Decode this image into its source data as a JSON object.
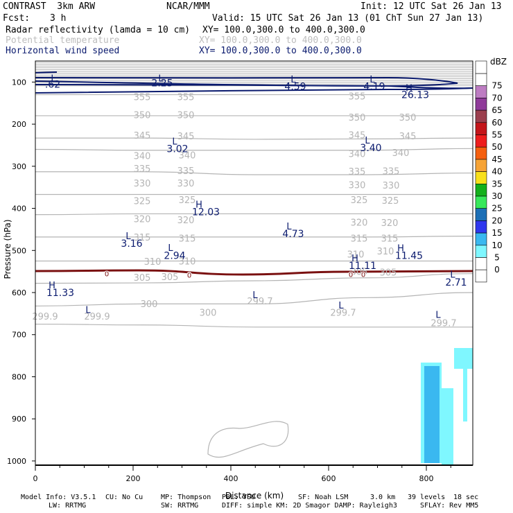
{
  "header": {
    "model": "CONTRAST  3km ARW",
    "center": "NCAR/MMM",
    "init": "Init: 12 UTC Sat 26 Jan 13",
    "fcst_label": "Fcst:",
    "fcst_value": "3 h",
    "valid": "Valid: 15 UTC Sat 26 Jan 13 (01 ChT Sun 27 Jan 13)",
    "field1": "Radar reflectivity (lamda = 10 cm)",
    "field1_xy": "XY= 100.0,300.0 to 400.0,300.0",
    "field2": "Potential temperature",
    "field2_xy": "XY= 100.0,300.0 to 400.0,300.0",
    "field3": "Horizontal wind speed",
    "field3_xy": "XY= 100.0,300.0 to 400.0,300.0"
  },
  "footer": {
    "line1_a": "Model Info: V3.5.1",
    "line1_b": "CU: No Cu",
    "line1_c": "MP: Thompson",
    "line1_d": "PBL: YSU",
    "line1_e": "SF: Noah LSM",
    "line1_f": "3.0 km",
    "line1_g": "39 levels",
    "line1_h": "18 sec",
    "line2_a": "LW: RRTMG",
    "line2_b": "SW: RRTMG",
    "line2_c": "DIFF: simple KM: 2D Smagor DAMP: Rayleigh3",
    "line2_d": "SFLAY: Rev MM5"
  },
  "colors": {
    "theta": "#b4b4b4",
    "wind": "#0a1a6e",
    "zero_line": "#7a1010",
    "axis": "#000000"
  },
  "chart_data": {
    "type": "heatmap",
    "title": "Radar reflectivity / Potential temperature / Horizontal wind speed cross-section",
    "xlabel": "Distance (km)",
    "ylabel": "Pressure (hPa)",
    "xlim": [
      0,
      895
    ],
    "ylim": [
      1010,
      50
    ],
    "x_ticks": [
      0,
      200,
      400,
      600,
      800
    ],
    "y_ticks": [
      100,
      200,
      300,
      400,
      500,
      600,
      700,
      800,
      900,
      1000
    ],
    "colorbar": {
      "unit": "dBZ",
      "levels": [
        0,
        5,
        10,
        15,
        20,
        25,
        30,
        35,
        40,
        45,
        50,
        55,
        60,
        65,
        70,
        75
      ],
      "colors": [
        "#ffffff",
        "#ffffff",
        "#7ff7ff",
        "#3ab8f0",
        "#2f37ee",
        "#1c6fb6",
        "#37e85a",
        "#13b01b",
        "#f9e01a",
        "#f6a335",
        "#f55f0e",
        "#ee1d1d",
        "#c4151a",
        "#9b3f4e",
        "#8f3a99",
        "#bd7cc2",
        "#ffffff"
      ]
    },
    "theta_contours": [
      {
        "value": "355",
        "p": [
          130,
          130,
          130,
          130,
          130
        ]
      },
      {
        "value": "350",
        "p": [
          180,
          180,
          180,
          180,
          180
        ]
      },
      {
        "value": "345",
        "p": [
          233,
          233,
          236,
          235,
          233
        ]
      },
      {
        "value": "340",
        "p": [
          260,
          262,
          262,
          262,
          258
        ]
      },
      {
        "value": "335",
        "p": [
          313,
          313,
          320,
          320,
          316
        ]
      },
      {
        "value": "330",
        "p": [
          367,
          367,
          367,
          367,
          367
        ]
      },
      {
        "value": "325",
        "p": [
          415,
          413,
          413,
          413,
          413
        ]
      },
      {
        "value": "320",
        "p": [
          468,
          468,
          468,
          468,
          466
        ]
      },
      {
        "value": "315",
        "p": [
          525,
          525,
          525,
          525,
          525
        ]
      },
      {
        "value": "310",
        "p": [
          578,
          577,
          572,
          565,
          555
        ]
      },
      {
        "value": "305",
        "p": [
          632,
          627,
          627,
          612,
          600
        ]
      },
      {
        "value": "300",
        "p": [
          675,
          677,
          682,
          682,
          682
        ]
      }
    ],
    "theta_labels": [
      {
        "text": "355",
        "x": 205,
        "p": 135
      },
      {
        "text": "355",
        "x": 268,
        "p": 135
      },
      {
        "text": "355",
        "x": 515,
        "p": 133
      },
      {
        "text": "350",
        "x": 205,
        "p": 178
      },
      {
        "text": "350",
        "x": 268,
        "p": 178
      },
      {
        "text": "350",
        "x": 515,
        "p": 183
      },
      {
        "text": "350",
        "x": 588,
        "p": 183
      },
      {
        "text": "345",
        "x": 205,
        "p": 226
      },
      {
        "text": "345",
        "x": 268,
        "p": 228
      },
      {
        "text": "345",
        "x": 515,
        "p": 225
      },
      {
        "text": "345",
        "x": 588,
        "p": 228
      },
      {
        "text": "340",
        "x": 205,
        "p": 275
      },
      {
        "text": "340",
        "x": 270,
        "p": 273
      },
      {
        "text": "340",
        "x": 515,
        "p": 270
      },
      {
        "text": "340",
        "x": 578,
        "p": 267
      },
      {
        "text": "335",
        "x": 205,
        "p": 305
      },
      {
        "text": "335",
        "x": 268,
        "p": 310
      },
      {
        "text": "335",
        "x": 515,
        "p": 312
      },
      {
        "text": "335",
        "x": 564,
        "p": 311
      },
      {
        "text": "330",
        "x": 205,
        "p": 340
      },
      {
        "text": "330",
        "x": 268,
        "p": 340
      },
      {
        "text": "330",
        "x": 515,
        "p": 344
      },
      {
        "text": "330",
        "x": 564,
        "p": 345
      },
      {
        "text": "325",
        "x": 205,
        "p": 382
      },
      {
        "text": "325",
        "x": 270,
        "p": 379
      },
      {
        "text": "325",
        "x": 518,
        "p": 379
      },
      {
        "text": "325",
        "x": 563,
        "p": 381
      },
      {
        "text": "320",
        "x": 205,
        "p": 425
      },
      {
        "text": "320",
        "x": 268,
        "p": 427
      },
      {
        "text": "320",
        "x": 518,
        "p": 433
      },
      {
        "text": "320",
        "x": 562,
        "p": 434
      },
      {
        "text": "315",
        "x": 205,
        "p": 468
      },
      {
        "text": "315",
        "x": 270,
        "p": 471
      },
      {
        "text": "315",
        "x": 518,
        "p": 471
      },
      {
        "text": "315",
        "x": 562,
        "p": 471
      },
      {
        "text": "310",
        "x": 220,
        "p": 526
      },
      {
        "text": "310",
        "x": 270,
        "p": 525
      },
      {
        "text": "310",
        "x": 513,
        "p": 509
      },
      {
        "text": "310",
        "x": 556,
        "p": 501
      },
      {
        "text": "305",
        "x": 205,
        "p": 564
      },
      {
        "text": "305",
        "x": 245,
        "p": 562
      },
      {
        "text": "305",
        "x": 518,
        "p": 550
      },
      {
        "text": "305",
        "x": 560,
        "p": 551
      },
      {
        "text": "300",
        "x": 215,
        "p": 626
      },
      {
        "text": "300",
        "x": 300,
        "p": 647
      },
      {
        "text": "299.7",
        "x": 375,
        "p": 620
      },
      {
        "text": "299.9",
        "x": 65,
        "p": 656
      },
      {
        "text": "299.9",
        "x": 140,
        "p": 656
      },
      {
        "text": "299.7",
        "x": 495,
        "p": 647
      },
      {
        "text": "299.7",
        "x": 640,
        "p": 672
      }
    ],
    "low_pressure_labels": [
      {
        "text": "L",
        "x": 77,
        "p": 90
      },
      {
        "text": "L",
        "x": 232,
        "p": 90
      },
      {
        "text": "L",
        "x": 423,
        "p": 93
      },
      {
        "text": "L",
        "x": 537,
        "p": 93
      },
      {
        "text": "L",
        "x": 252,
        "p": 240
      },
      {
        "text": "L",
        "x": 530,
        "p": 238
      },
      {
        "text": "L",
        "x": 653,
        "p": 556
      },
      {
        "text": "L",
        "x": 417,
        "p": 442
      },
      {
        "text": "L",
        "x": 185,
        "p": 465
      },
      {
        "text": "L",
        "x": 246,
        "p": 493
      },
      {
        "text": "L",
        "x": 368,
        "p": 605
      },
      {
        "text": "L",
        "x": 127,
        "p": 640
      },
      {
        "text": "L",
        "x": 492,
        "p": 630
      },
      {
        "text": "L",
        "x": 632,
        "p": 652
      }
    ],
    "high_pressure_labels": [
      {
        "text": "H",
        "x": 590,
        "p": 113
      },
      {
        "text": "H",
        "x": 287,
        "p": 390
      },
      {
        "text": "H",
        "x": 578,
        "p": 494
      },
      {
        "text": "H",
        "x": 512,
        "p": 518
      },
      {
        "text": "H",
        "x": 75,
        "p": 582
      }
    ],
    "wind_speed_labels": [
      {
        "text": ".62",
        "x": 76,
        "p": 105
      },
      {
        "text": "2.25",
        "x": 234,
        "p": 102
      },
      {
        "text": "4.59",
        "x": 426,
        "p": 110
      },
      {
        "text": "4.19",
        "x": 540,
        "p": 110
      },
      {
        "text": "26.13",
        "x": 599,
        "p": 130
      },
      {
        "text": "3.02",
        "x": 256,
        "p": 258
      },
      {
        "text": "3.40",
        "x": 535,
        "p": 256
      },
      {
        "text": "12.03",
        "x": 297,
        "p": 408
      },
      {
        "text": "2.71",
        "x": 658,
        "p": 575
      },
      {
        "text": "4.73",
        "x": 423,
        "p": 460
      },
      {
        "text": "3.16",
        "x": 190,
        "p": 483
      },
      {
        "text": "2.94",
        "x": 252,
        "p": 512
      },
      {
        "text": "11.45",
        "x": 590,
        "p": 512
      },
      {
        "text": "11.11",
        "x": 523,
        "p": 536
      },
      {
        "text": "11.33",
        "x": 87,
        "p": 600
      }
    ],
    "zero_labels": [
      {
        "text": "0",
        "x": 154,
        "p": 553
      },
      {
        "text": "0",
        "x": 273,
        "p": 556
      },
      {
        "text": "0",
        "x": 506,
        "p": 555
      },
      {
        "text": "0",
        "x": 524,
        "p": 555
      }
    ]
  }
}
